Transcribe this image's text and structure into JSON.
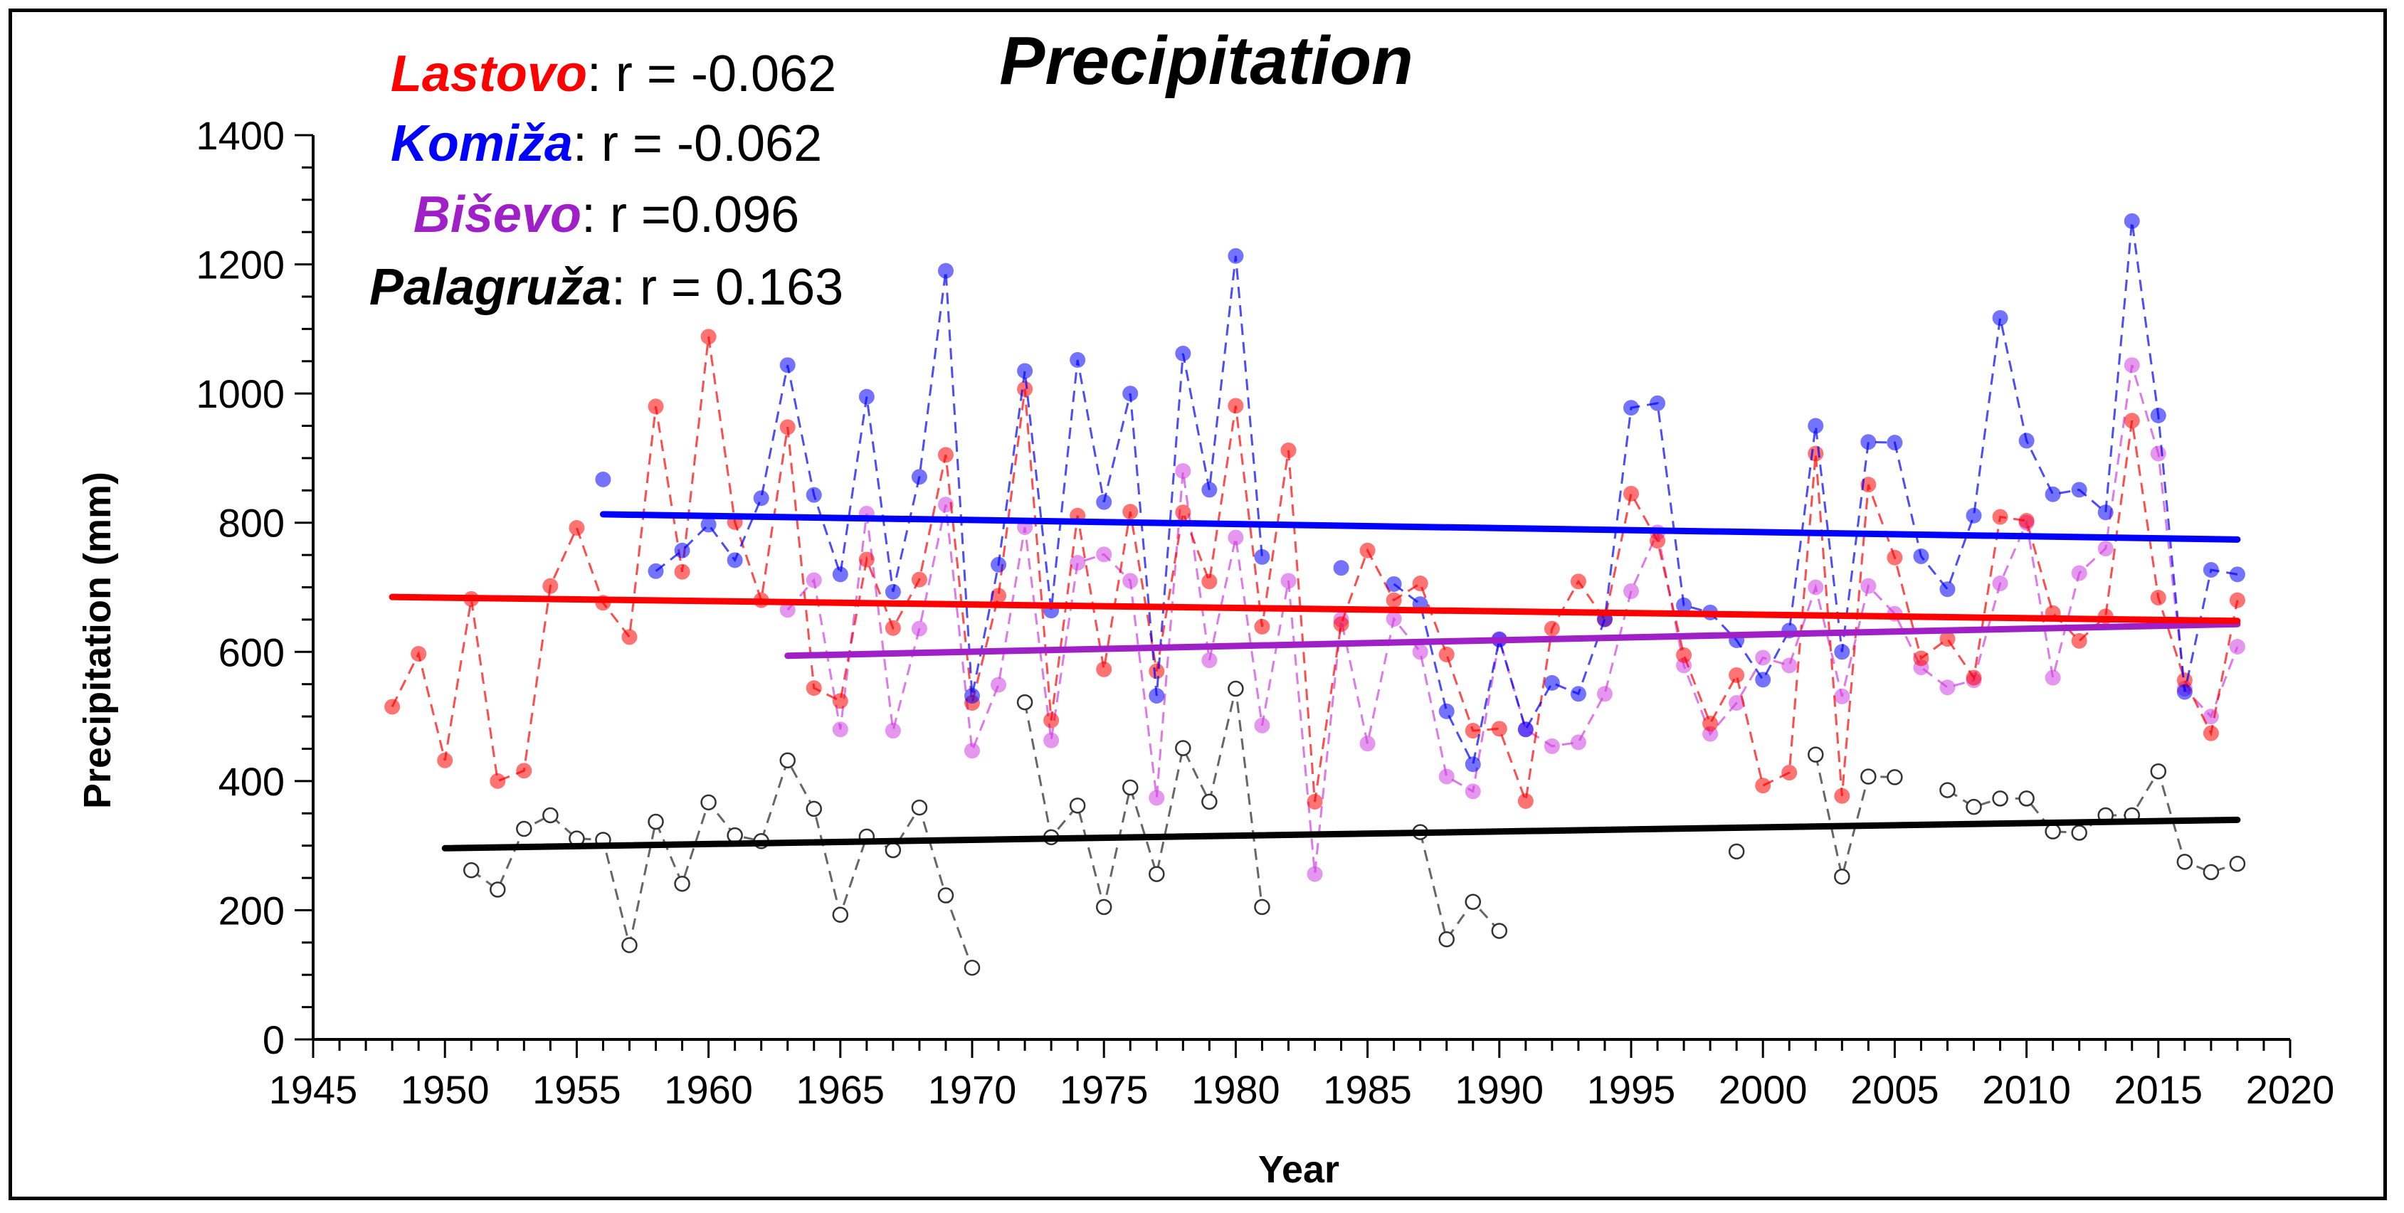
{
  "chart_data": {
    "type": "line",
    "title": "Precipitation",
    "xlabel": "Year",
    "ylabel": "Precipitation (mm)",
    "xlim": [
      1945,
      2020
    ],
    "ylim": [
      0,
      1400
    ],
    "x_ticks": [
      1945,
      1950,
      1955,
      1960,
      1965,
      1970,
      1975,
      1980,
      1985,
      1990,
      1995,
      2000,
      2005,
      2010,
      2015,
      2020
    ],
    "y_ticks": [
      0,
      200,
      400,
      600,
      800,
      1000,
      1200,
      1400
    ],
    "legend": [
      {
        "name": "Lastovo",
        "suffix": ": r = -0.062",
        "color": "#ff0000"
      },
      {
        "name": "Komiža",
        "suffix": ": r = -0.062",
        "color": "#0000ff"
      },
      {
        "name": "Biševo",
        "suffix": ": r =0.096",
        "color": "#a020c8"
      },
      {
        "name": "Palagruža",
        "suffix": ": r = 0.163",
        "color": "#000000"
      }
    ],
    "series": [
      {
        "name": "Lastovo",
        "color": "#ff0000",
        "marker": "filled",
        "trend": [
          [
            1948,
            685
          ],
          [
            2018,
            648
          ]
        ],
        "points": [
          [
            1948,
            515
          ],
          [
            1949,
            597
          ],
          [
            1950,
            432
          ],
          [
            1951,
            682
          ],
          [
            1952,
            400
          ],
          [
            1953,
            416
          ],
          [
            1954,
            702
          ],
          [
            1955,
            792
          ],
          [
            1956,
            676
          ],
          [
            1957,
            623
          ],
          [
            1958,
            980
          ],
          [
            1959,
            724
          ],
          [
            1960,
            1088
          ],
          [
            1961,
            801
          ],
          [
            1962,
            680
          ],
          [
            1963,
            948
          ],
          [
            1964,
            544
          ],
          [
            1965,
            524
          ],
          [
            1966,
            743
          ],
          [
            1967,
            637
          ],
          [
            1968,
            712
          ],
          [
            1969,
            905
          ],
          [
            1970,
            521
          ],
          [
            1971,
            687
          ],
          [
            1972,
            1007
          ],
          [
            1973,
            494
          ],
          [
            1974,
            811
          ],
          [
            1975,
            573
          ],
          [
            1976,
            817
          ],
          [
            1977,
            570
          ],
          [
            1978,
            816
          ],
          [
            1979,
            709
          ],
          [
            1980,
            981
          ],
          [
            1981,
            639
          ],
          [
            1982,
            912
          ],
          [
            1983,
            368
          ],
          [
            1984,
            643
          ],
          [
            1985,
            757
          ],
          [
            1986,
            680
          ],
          [
            1987,
            706
          ],
          [
            1988,
            596
          ],
          [
            1989,
            478
          ],
          [
            1990,
            481
          ],
          [
            1991,
            369
          ],
          [
            1992,
            636
          ],
          [
            1993,
            709
          ],
          [
            1994,
            650
          ],
          [
            1995,
            845
          ],
          [
            1996,
            772
          ],
          [
            1997,
            595
          ],
          [
            1998,
            489
          ],
          [
            1999,
            564
          ],
          [
            2000,
            393
          ],
          [
            2001,
            413
          ],
          [
            2002,
            907
          ],
          [
            2003,
            377
          ],
          [
            2004,
            859
          ],
          [
            2005,
            746
          ],
          [
            2006,
            590
          ],
          [
            2007,
            620
          ],
          [
            2008,
            560
          ],
          [
            2009,
            809
          ],
          [
            2010,
            803
          ],
          [
            2011,
            660
          ],
          [
            2012,
            617
          ],
          [
            2013,
            655
          ],
          [
            2014,
            958
          ],
          [
            2015,
            684
          ],
          [
            2016,
            556
          ],
          [
            2017,
            474
          ],
          [
            2018,
            680
          ]
        ]
      },
      {
        "name": "Komiža",
        "color": "#0000ff",
        "marker": "filled",
        "trend": [
          [
            1956,
            813
          ],
          [
            2018,
            774
          ]
        ],
        "points": [
          [
            1956,
            867
          ],
          [
            1958,
            725
          ],
          [
            1959,
            757
          ],
          [
            1960,
            797
          ],
          [
            1961,
            742
          ],
          [
            1962,
            838
          ],
          [
            1963,
            1044
          ],
          [
            1964,
            843
          ],
          [
            1965,
            720
          ],
          [
            1966,
            995
          ],
          [
            1967,
            693
          ],
          [
            1968,
            871
          ],
          [
            1969,
            1190
          ],
          [
            1970,
            532
          ],
          [
            1971,
            735
          ],
          [
            1972,
            1035
          ],
          [
            1973,
            664
          ],
          [
            1974,
            1052
          ],
          [
            1975,
            832
          ],
          [
            1976,
            1000
          ],
          [
            1977,
            532
          ],
          [
            1978,
            1062
          ],
          [
            1979,
            851
          ],
          [
            1980,
            1213
          ],
          [
            1981,
            747
          ],
          [
            1984,
            730
          ],
          [
            1986,
            705
          ],
          [
            1987,
            674
          ],
          [
            1988,
            508
          ],
          [
            1989,
            426
          ],
          [
            1990,
            619
          ],
          [
            1991,
            480
          ],
          [
            1992,
            552
          ],
          [
            1993,
            535
          ],
          [
            1994,
            651
          ],
          [
            1995,
            978
          ],
          [
            1996,
            985
          ],
          [
            1997,
            672
          ],
          [
            1998,
            661
          ],
          [
            1999,
            618
          ],
          [
            2000,
            557
          ],
          [
            2001,
            633
          ],
          [
            2002,
            950
          ],
          [
            2003,
            600
          ],
          [
            2004,
            925
          ],
          [
            2005,
            924
          ],
          [
            2006,
            748
          ],
          [
            2007,
            697
          ],
          [
            2008,
            811
          ],
          [
            2009,
            1117
          ],
          [
            2010,
            927
          ],
          [
            2011,
            844
          ],
          [
            2012,
            851
          ],
          [
            2013,
            816
          ],
          [
            2014,
            1267
          ],
          [
            2015,
            966
          ],
          [
            2016,
            538
          ],
          [
            2017,
            727
          ],
          [
            2018,
            720
          ]
        ]
      },
      {
        "name": "Biševo",
        "color": "#d040e0",
        "marker": "filled",
        "trend": [
          [
            1963,
            594
          ],
          [
            2018,
            643
          ]
        ],
        "points": [
          [
            1963,
            665
          ],
          [
            1964,
            711
          ],
          [
            1965,
            480
          ],
          [
            1966,
            814
          ],
          [
            1967,
            478
          ],
          [
            1968,
            636
          ],
          [
            1969,
            828
          ],
          [
            1970,
            447
          ],
          [
            1971,
            549
          ],
          [
            1972,
            793
          ],
          [
            1973,
            463
          ],
          [
            1974,
            738
          ],
          [
            1975,
            751
          ],
          [
            1976,
            710
          ],
          [
            1977,
            374
          ],
          [
            1978,
            880
          ],
          [
            1979,
            587
          ],
          [
            1980,
            777
          ],
          [
            1981,
            486
          ],
          [
            1982,
            710
          ],
          [
            1983,
            256
          ],
          [
            1984,
            650
          ],
          [
            1985,
            458
          ],
          [
            1986,
            651
          ],
          [
            1987,
            600
          ],
          [
            1988,
            407
          ],
          [
            1989,
            384
          ],
          [
            1990,
            620
          ],
          [
            1991,
            480
          ],
          [
            1992,
            454
          ],
          [
            1993,
            460
          ],
          [
            1994,
            535
          ],
          [
            1995,
            694
          ],
          [
            1996,
            785
          ],
          [
            1997,
            579
          ],
          [
            1998,
            473
          ],
          [
            1999,
            521
          ],
          [
            2000,
            591
          ],
          [
            2001,
            579
          ],
          [
            2002,
            700
          ],
          [
            2003,
            531
          ],
          [
            2004,
            702
          ],
          [
            2005,
            659
          ],
          [
            2006,
            576
          ],
          [
            2007,
            545
          ],
          [
            2008,
            556
          ],
          [
            2009,
            706
          ],
          [
            2010,
            800
          ],
          [
            2011,
            560
          ],
          [
            2012,
            722
          ],
          [
            2013,
            760
          ],
          [
            2014,
            1044
          ],
          [
            2015,
            907
          ],
          [
            2016,
            543
          ],
          [
            2017,
            500
          ],
          [
            2018,
            608
          ]
        ]
      },
      {
        "name": "Palagruža",
        "color": "#000000",
        "marker": "open",
        "trend": [
          [
            1950,
            296
          ],
          [
            2018,
            340
          ]
        ],
        "points": [
          [
            1951,
            262
          ],
          [
            1952,
            232
          ],
          [
            1953,
            326
          ],
          [
            1954,
            347
          ],
          [
            1955,
            311
          ],
          [
            1956,
            309
          ],
          [
            1957,
            146
          ],
          [
            1958,
            337
          ],
          [
            1959,
            241
          ],
          [
            1960,
            367
          ],
          [
            1961,
            316
          ],
          [
            1962,
            307
          ],
          [
            1963,
            432
          ],
          [
            1964,
            357
          ],
          [
            1965,
            193
          ],
          [
            1966,
            314
          ],
          [
            1967,
            293
          ],
          [
            1968,
            359
          ],
          [
            1969,
            223
          ],
          [
            1970,
            111
          ],
          [
            1971,
            null
          ],
          [
            1972,
            522
          ],
          [
            1973,
            313
          ],
          [
            1974,
            362
          ],
          [
            1975,
            205
          ],
          [
            1976,
            390
          ],
          [
            1977,
            256
          ],
          [
            1978,
            451
          ],
          [
            1979,
            368
          ],
          [
            1980,
            543
          ],
          [
            1981,
            205
          ],
          [
            1982,
            null
          ],
          [
            1987,
            321
          ],
          [
            1988,
            155
          ],
          [
            1989,
            213
          ],
          [
            1990,
            168
          ],
          [
            1991,
            null
          ],
          [
            1999,
            291
          ],
          [
            2000,
            null
          ],
          [
            2002,
            441
          ],
          [
            2003,
            252
          ],
          [
            2004,
            407
          ],
          [
            2005,
            406
          ],
          [
            2006,
            null
          ],
          [
            2007,
            386
          ],
          [
            2008,
            360
          ],
          [
            2009,
            373
          ],
          [
            2010,
            373
          ],
          [
            2011,
            322
          ],
          [
            2012,
            320
          ],
          [
            2013,
            347
          ],
          [
            2014,
            347
          ],
          [
            2015,
            415
          ],
          [
            2016,
            275
          ],
          [
            2017,
            259
          ],
          [
            2018,
            272
          ]
        ]
      }
    ]
  }
}
